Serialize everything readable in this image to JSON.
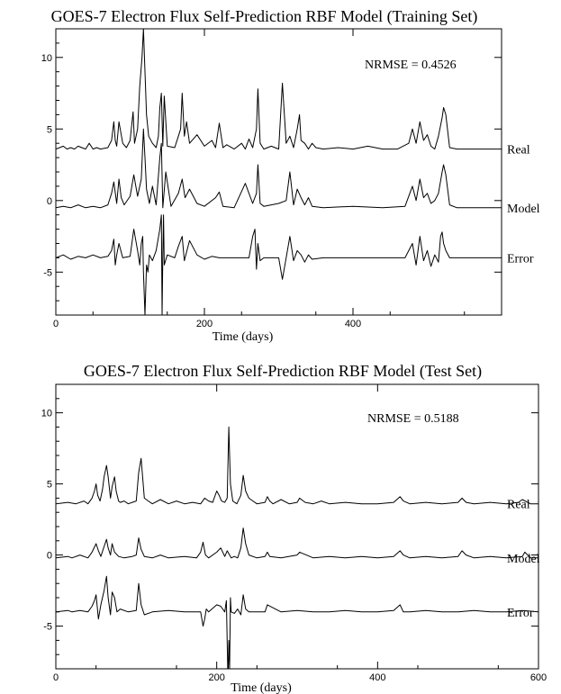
{
  "chart_data": [
    {
      "type": "line",
      "title": "GOES-7 Electron Flux Self-Prediction RBF Model (Training Set)",
      "xlabel": "Time (days)",
      "ylabel": "",
      "xlim": [
        0,
        600
      ],
      "ylim": [
        -8,
        12
      ],
      "xticks": [
        0,
        200,
        400
      ],
      "yticks": [
        -5,
        0,
        5,
        10
      ],
      "grid": false,
      "annotation": "NRMSE = 0.4526",
      "series": [
        {
          "name": "Real",
          "baseline": 3.6,
          "x": [
            0,
            10,
            15,
            20,
            25,
            30,
            40,
            45,
            50,
            55,
            60,
            70,
            75,
            78,
            80,
            82,
            85,
            90,
            95,
            100,
            104,
            106,
            108,
            110,
            113,
            116,
            118,
            120,
            122,
            125,
            130,
            135,
            138,
            140,
            142,
            144,
            146,
            150,
            160,
            165,
            168,
            170,
            173,
            176,
            180,
            190,
            200,
            210,
            215,
            220,
            225,
            230,
            240,
            250,
            255,
            260,
            265,
            270,
            272,
            275,
            280,
            290,
            300,
            305,
            310,
            315,
            320,
            325,
            328,
            330,
            335,
            340,
            345,
            350,
            360,
            380,
            400,
            420,
            440,
            460,
            475,
            480,
            485,
            490,
            495,
            500,
            505,
            510,
            515,
            520,
            522,
            525,
            530,
            540,
            560,
            600
          ],
          "y": [
            3.6,
            3.8,
            3.6,
            3.7,
            3.6,
            3.8,
            3.6,
            4.0,
            3.6,
            3.7,
            3.6,
            3.7,
            4.2,
            5.5,
            4.2,
            3.8,
            5.5,
            4.0,
            3.7,
            4.2,
            6.2,
            4.0,
            4.5,
            5.0,
            8.0,
            10.0,
            12.0,
            9.0,
            6.0,
            4.5,
            4.0,
            3.7,
            4.5,
            6.5,
            7.5,
            3.8,
            7.3,
            3.8,
            3.7,
            4.5,
            5.0,
            7.5,
            4.5,
            5.5,
            4.0,
            4.6,
            3.8,
            4.2,
            3.7,
            5.4,
            3.7,
            3.9,
            3.6,
            4.0,
            3.6,
            4.3,
            3.7,
            5.0,
            7.8,
            4.0,
            3.6,
            3.8,
            3.6,
            8.2,
            4.0,
            4.5,
            3.7,
            5.0,
            6.0,
            4.2,
            4.0,
            3.6,
            4.0,
            3.7,
            3.6,
            3.7,
            3.6,
            3.8,
            3.6,
            3.6,
            4.0,
            5.0,
            4.0,
            5.5,
            4.2,
            4.6,
            3.8,
            3.6,
            4.5,
            5.8,
            6.5,
            6.0,
            3.7,
            3.6,
            3.6,
            3.6
          ]
        },
        {
          "name": "Model",
          "baseline": -0.5,
          "x": [
            0,
            10,
            20,
            30,
            40,
            50,
            60,
            70,
            75,
            78,
            82,
            85,
            88,
            92,
            100,
            105,
            110,
            115,
            118,
            120,
            122,
            126,
            130,
            135,
            140,
            142,
            144,
            148,
            155,
            165,
            170,
            174,
            180,
            190,
            200,
            215,
            220,
            225,
            240,
            255,
            265,
            270,
            272,
            275,
            280,
            300,
            310,
            315,
            320,
            325,
            330,
            335,
            340,
            345,
            360,
            400,
            440,
            470,
            480,
            485,
            490,
            495,
            500,
            505,
            510,
            515,
            520,
            522,
            525,
            530,
            540,
            600
          ],
          "y": [
            -0.5,
            -0.4,
            -0.5,
            -0.3,
            -0.5,
            -0.4,
            -0.5,
            -0.3,
            0.5,
            1.3,
            -0.2,
            1.5,
            0.2,
            -0.3,
            0.3,
            1.8,
            0.3,
            1.5,
            5.0,
            3.0,
            0.8,
            -0.2,
            1.0,
            -0.3,
            3.0,
            4.0,
            -0.5,
            2.0,
            -0.4,
            0.5,
            1.5,
            0.2,
            0.8,
            -0.2,
            -0.4,
            0.2,
            0.6,
            -0.4,
            -0.5,
            1.2,
            -0.2,
            0.5,
            2.5,
            -0.2,
            -0.4,
            -0.2,
            0.0,
            2.0,
            -0.3,
            0.8,
            0.2,
            -0.3,
            0.2,
            -0.4,
            -0.5,
            -0.4,
            -0.5,
            -0.4,
            1.0,
            0.0,
            1.5,
            0.2,
            0.5,
            -0.2,
            0.0,
            0.5,
            2.0,
            2.5,
            1.8,
            -0.3,
            -0.5,
            -0.5
          ]
        },
        {
          "name": "Error",
          "baseline": -4.0,
          "x": [
            0,
            10,
            20,
            30,
            40,
            50,
            60,
            70,
            75,
            78,
            80,
            82,
            85,
            90,
            100,
            105,
            110,
            113,
            115,
            117,
            118,
            120,
            122,
            124,
            126,
            130,
            135,
            140,
            142,
            143,
            144,
            145,
            146,
            150,
            160,
            165,
            170,
            173,
            176,
            180,
            190,
            200,
            210,
            220,
            240,
            260,
            265,
            268,
            270,
            272,
            275,
            280,
            290,
            300,
            305,
            310,
            315,
            320,
            325,
            330,
            335,
            340,
            345,
            360,
            400,
            440,
            470,
            480,
            485,
            490,
            495,
            500,
            505,
            510,
            515,
            518,
            520,
            522,
            525,
            530,
            540,
            600
          ],
          "y": [
            -4.0,
            -3.8,
            -4.1,
            -3.9,
            -4.0,
            -3.8,
            -4.0,
            -3.9,
            -3.5,
            -2.7,
            -4.5,
            -3.8,
            -3.0,
            -4.0,
            -3.9,
            -2.0,
            -3.5,
            -4.5,
            -3.0,
            -2.5,
            -5.0,
            -8.0,
            -4.5,
            -5.0,
            -3.8,
            -4.2,
            -3.5,
            -2.0,
            -1.0,
            -8.0,
            -4.0,
            -1.0,
            -4.5,
            -3.8,
            -4.0,
            -3.2,
            -2.5,
            -4.2,
            -3.6,
            -2.8,
            -3.8,
            -4.1,
            -3.9,
            -4.0,
            -4.0,
            -4.0,
            -2.5,
            -2.0,
            -4.8,
            -3.0,
            -4.2,
            -4.0,
            -4.0,
            -4.0,
            -5.5,
            -4.0,
            -2.5,
            -4.2,
            -3.5,
            -3.8,
            -4.3,
            -3.8,
            -4.1,
            -4.0,
            -4.0,
            -4.0,
            -4.0,
            -3.0,
            -4.5,
            -2.5,
            -4.2,
            -3.5,
            -4.6,
            -3.8,
            -4.3,
            -2.5,
            -2.2,
            -3.0,
            -3.5,
            -4.0,
            -4.0,
            -4.0
          ]
        }
      ],
      "series_labels": [
        "Real",
        "Model",
        "Error"
      ]
    },
    {
      "type": "line",
      "title": "GOES-7 Electron Flux Self-Prediction RBF Model (Test Set)",
      "xlabel": "Time (days)",
      "ylabel": "",
      "xlim": [
        0,
        600
      ],
      "ylim": [
        -8,
        12
      ],
      "xticks": [
        0,
        200,
        400,
        600
      ],
      "yticks": [
        -5,
        0,
        5,
        10
      ],
      "grid": false,
      "annotation": "NRMSE = 0.5188",
      "series": [
        {
          "name": "Real",
          "baseline": 3.6,
          "x": [
            0,
            15,
            25,
            35,
            40,
            45,
            48,
            50,
            52,
            55,
            58,
            60,
            63,
            65,
            68,
            70,
            73,
            75,
            78,
            80,
            85,
            90,
            95,
            100,
            103,
            106,
            110,
            115,
            120,
            130,
            140,
            150,
            160,
            170,
            180,
            185,
            190,
            195,
            200,
            203,
            206,
            210,
            213,
            215,
            217,
            220,
            225,
            230,
            233,
            236,
            240,
            245,
            250,
            260,
            263,
            266,
            270,
            280,
            290,
            300,
            303,
            310,
            320,
            330,
            340,
            360,
            380,
            400,
            420,
            428,
            432,
            440,
            460,
            480,
            500,
            505,
            510,
            520,
            540,
            560,
            575,
            580,
            590,
            600
          ],
          "y": [
            3.6,
            3.7,
            3.6,
            3.8,
            3.6,
            4.0,
            4.5,
            5.0,
            4.2,
            3.8,
            4.6,
            5.5,
            6.3,
            5.5,
            4.0,
            4.8,
            5.5,
            4.5,
            3.8,
            3.7,
            3.8,
            3.6,
            3.7,
            3.8,
            5.8,
            6.8,
            4.0,
            3.8,
            3.6,
            3.9,
            3.6,
            3.8,
            3.6,
            3.7,
            3.6,
            4.0,
            3.8,
            3.7,
            4.5,
            4.2,
            3.8,
            3.7,
            4.0,
            9.0,
            5.0,
            3.8,
            3.6,
            4.2,
            5.6,
            4.5,
            4.0,
            3.8,
            3.6,
            3.7,
            4.1,
            3.8,
            3.6,
            3.9,
            3.6,
            3.7,
            4.0,
            3.7,
            3.6,
            3.8,
            3.6,
            3.7,
            3.6,
            3.6,
            3.7,
            4.1,
            3.8,
            3.6,
            3.7,
            3.6,
            3.7,
            4.0,
            3.7,
            3.6,
            3.7,
            3.6,
            3.7,
            3.9,
            3.6,
            3.6
          ]
        },
        {
          "name": "Model",
          "baseline": -0.2,
          "x": [
            0,
            15,
            20,
            30,
            40,
            45,
            50,
            53,
            56,
            60,
            63,
            65,
            68,
            70,
            73,
            78,
            85,
            95,
            100,
            103,
            106,
            110,
            120,
            130,
            140,
            160,
            175,
            180,
            183,
            186,
            190,
            200,
            205,
            210,
            213,
            216,
            218,
            222,
            226,
            230,
            233,
            236,
            240,
            250,
            260,
            263,
            266,
            280,
            300,
            303,
            320,
            340,
            360,
            380,
            400,
            420,
            428,
            432,
            440,
            460,
            480,
            500,
            505,
            510,
            520,
            540,
            560,
            580,
            583,
            590,
            600
          ],
          "y": [
            -0.2,
            -0.1,
            -0.2,
            0.0,
            -0.2,
            0.2,
            0.8,
            0.3,
            -0.1,
            0.6,
            1.1,
            0.5,
            0.0,
            0.8,
            0.2,
            -0.1,
            -0.2,
            -0.1,
            0.0,
            1.2,
            0.4,
            -0.1,
            -0.2,
            0.0,
            -0.2,
            -0.1,
            -0.2,
            0.2,
            0.9,
            0.0,
            -0.2,
            0.2,
            0.5,
            -0.1,
            0.3,
            0.0,
            -0.2,
            -0.1,
            -0.2,
            0.5,
            1.9,
            0.8,
            0.0,
            -0.2,
            -0.1,
            0.2,
            -0.1,
            -0.2,
            0.0,
            0.2,
            -0.2,
            -0.1,
            -0.2,
            -0.1,
            -0.2,
            -0.1,
            0.3,
            0.0,
            -0.2,
            -0.1,
            -0.2,
            -0.1,
            0.3,
            0.0,
            -0.2,
            -0.1,
            -0.2,
            -0.1,
            0.2,
            -0.2,
            -0.2
          ]
        },
        {
          "name": "Error",
          "baseline": -4.0,
          "x": [
            0,
            15,
            20,
            30,
            40,
            45,
            48,
            50,
            53,
            56,
            60,
            63,
            65,
            68,
            70,
            73,
            76,
            80,
            90,
            100,
            103,
            106,
            110,
            120,
            140,
            160,
            180,
            183,
            185,
            187,
            190,
            200,
            205,
            210,
            212,
            214,
            215,
            216,
            217,
            218,
            222,
            226,
            230,
            233,
            236,
            240,
            260,
            263,
            280,
            300,
            320,
            340,
            360,
            380,
            400,
            420,
            428,
            432,
            440,
            460,
            480,
            500,
            520,
            540,
            560,
            580,
            600
          ],
          "y": [
            -4.0,
            -3.9,
            -4.0,
            -3.9,
            -4.0,
            -3.6,
            -3.2,
            -2.8,
            -4.5,
            -3.5,
            -2.5,
            -1.5,
            -3.0,
            -4.2,
            -2.6,
            -3.0,
            -4.0,
            -3.8,
            -4.0,
            -3.9,
            -2.0,
            -3.5,
            -4.2,
            -4.0,
            -3.9,
            -4.0,
            -4.0,
            -5.0,
            -4.5,
            -3.8,
            -4.0,
            -3.5,
            -3.6,
            -4.0,
            -3.2,
            -9.0,
            -6.0,
            -8.0,
            -3.0,
            -4.0,
            -4.1,
            -3.8,
            -4.2,
            -2.8,
            -3.8,
            -4.0,
            -4.0,
            -3.5,
            -4.0,
            -3.9,
            -4.0,
            -4.0,
            -3.9,
            -4.0,
            -4.0,
            -3.9,
            -3.5,
            -4.0,
            -4.0,
            -3.9,
            -4.0,
            -4.0,
            -3.9,
            -4.0,
            -4.0,
            -3.9,
            -4.0
          ]
        }
      ],
      "series_labels": [
        "Real",
        "Model",
        "Error"
      ]
    }
  ]
}
